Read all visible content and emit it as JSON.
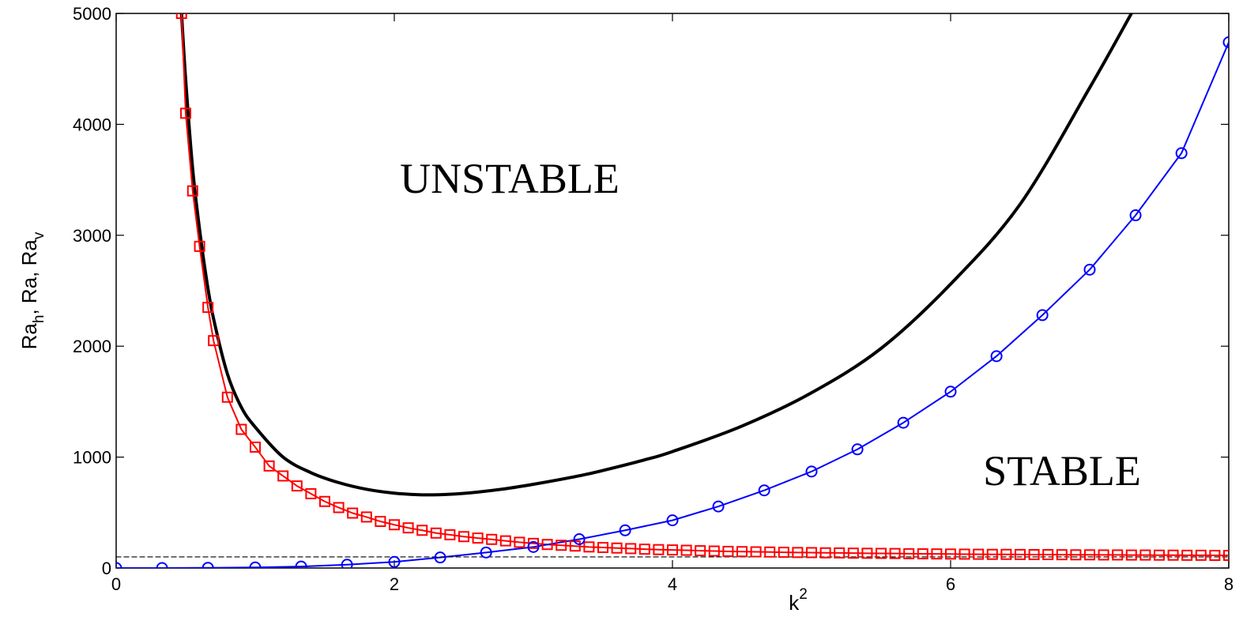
{
  "chart_data": {
    "type": "line",
    "xlabel": "k",
    "xlabel_sup": "2",
    "ylabel_parts": [
      {
        "text": "Ra",
        "sub": "h"
      },
      {
        "text": ", Ra, Ra",
        "sub": "v"
      }
    ],
    "xlim": [
      0,
      8
    ],
    "ylim": [
      0,
      5000
    ],
    "xticks": [
      0,
      2,
      4,
      6,
      8
    ],
    "yticks": [
      0,
      1000,
      2000,
      3000,
      4000,
      5000
    ],
    "grid": false,
    "annotations": [
      {
        "text": "UNSTABLE",
        "x": 2.85,
        "y": 3550
      },
      {
        "text": "STABLE",
        "x": 6.8,
        "y": 850
      }
    ],
    "series": [
      {
        "color": "#000000",
        "marker": "none",
        "x": [
          0.47,
          0.5,
          0.55,
          0.6,
          0.65,
          0.7,
          0.8,
          0.9,
          1.0,
          1.2,
          1.4,
          1.6,
          1.8,
          2.0,
          2.2,
          2.4,
          2.6,
          2.8,
          3.0,
          3.2,
          3.4,
          3.6,
          3.8,
          4.0,
          4.5,
          5.0,
          5.5,
          6.0,
          6.5,
          7.0,
          7.3
        ],
        "y": [
          5000,
          4400,
          3600,
          3050,
          2600,
          2250,
          1750,
          1450,
          1270,
          1000,
          860,
          770,
          710,
          675,
          660,
          665,
          685,
          715,
          755,
          800,
          850,
          910,
          975,
          1050,
          1280,
          1580,
          1980,
          2560,
          3280,
          4330,
          5000
        ]
      },
      {
        "color": "#ff0000",
        "marker": "square",
        "x": [
          0.47,
          0.5,
          0.55,
          0.6,
          0.66,
          0.7,
          0.8,
          0.9,
          1.0,
          1.1,
          1.2,
          1.3,
          1.4,
          1.5,
          1.6,
          1.7,
          1.8,
          1.9,
          2.0,
          2.1,
          2.2,
          2.3,
          2.4,
          2.5,
          2.6,
          2.7,
          2.8,
          2.9,
          3.0,
          3.1,
          3.2,
          3.3,
          3.4,
          3.5,
          3.6,
          3.7,
          3.8,
          3.9,
          4.0,
          4.1,
          4.2,
          4.3,
          4.4,
          4.5,
          4.6,
          4.7,
          4.8,
          4.9,
          5.0,
          5.1,
          5.2,
          5.3,
          5.4,
          5.5,
          5.6,
          5.7,
          5.8,
          5.9,
          6.0,
          6.1,
          6.2,
          6.3,
          6.4,
          6.5,
          6.6,
          6.7,
          6.8,
          6.9,
          7.0,
          7.1,
          7.2,
          7.3,
          7.4,
          7.5,
          7.6,
          7.7,
          7.8,
          7.9,
          8.0
        ],
        "y": [
          5000,
          4100,
          3400,
          2900,
          2350,
          2050,
          1540,
          1250,
          1090,
          920,
          830,
          740,
          670,
          600,
          545,
          495,
          460,
          420,
          390,
          362,
          340,
          315,
          300,
          283,
          270,
          258,
          245,
          232,
          222,
          212,
          205,
          198,
          190,
          185,
          180,
          175,
          170,
          166,
          163,
          160,
          156,
          153,
          150,
          148,
          146,
          144,
          142,
          140,
          139,
          137,
          136,
          134,
          133,
          132,
          131,
          129,
          128,
          127,
          126,
          125,
          124,
          123,
          123,
          122,
          121,
          121,
          120,
          119,
          119,
          118,
          118,
          117,
          117,
          116,
          116,
          115,
          115,
          114,
          114
        ]
      },
      {
        "color": "#0000ff",
        "marker": "circle",
        "x": [
          0,
          0.33,
          0.66,
          1.0,
          1.33,
          1.66,
          2.0,
          2.33,
          2.66,
          3.0,
          3.33,
          3.66,
          4.0,
          4.33,
          4.66,
          5.0,
          5.33,
          5.66,
          6.0,
          6.33,
          6.66,
          7.0,
          7.33,
          7.66,
          8.0
        ],
        "y": [
          0,
          0,
          2,
          5,
          13,
          30,
          55,
          95,
          140,
          190,
          260,
          340,
          430,
          555,
          700,
          870,
          1070,
          1310,
          1590,
          1910,
          2280,
          2690,
          3180,
          3740,
          4740
        ]
      },
      {
        "color": "#000000",
        "marker": "none",
        "dashed": true,
        "x": [
          0,
          8
        ],
        "y": [
          100,
          100
        ]
      }
    ]
  }
}
